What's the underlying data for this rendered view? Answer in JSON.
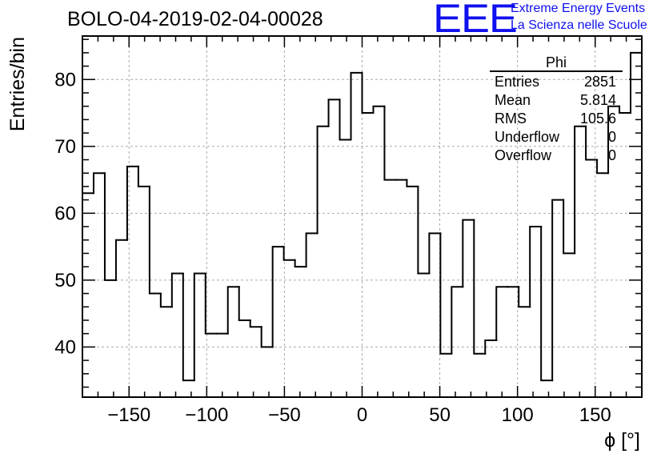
{
  "chart_data": {
    "type": "histogram",
    "title": "BOLO-04-2019-02-04-00028",
    "xlabel": "ϕ [°]",
    "ylabel": "Entries/bin",
    "xlim": [
      -180,
      180
    ],
    "ylim": [
      32.5,
      86.5
    ],
    "bin_width": 7.2,
    "x_ticks": [
      -150,
      -100,
      -50,
      0,
      50,
      100,
      150
    ],
    "x_tick_labels": [
      "−150",
      "−100",
      "−50",
      "0",
      "50",
      "100",
      "150"
    ],
    "y_ticks": [
      40,
      50,
      60,
      70,
      80
    ],
    "y_tick_labels": [
      "40",
      "50",
      "60",
      "70",
      "80"
    ],
    "grid": true,
    "values": [
      63,
      66,
      50,
      56,
      67,
      64,
      48,
      46,
      51,
      35,
      51,
      42,
      42,
      49,
      44,
      43,
      40,
      55,
      53,
      52,
      57,
      73,
      77,
      71,
      81,
      75,
      76,
      65,
      65,
      64,
      51,
      57,
      39,
      49,
      59,
      39,
      41,
      49,
      49,
      46,
      58,
      35,
      62,
      54,
      73,
      68,
      66,
      76,
      75,
      84
    ]
  },
  "stats_box": {
    "title": "Phi",
    "rows": [
      {
        "label": "Entries",
        "value": "2851"
      },
      {
        "label": "Mean",
        "value": "5.814"
      },
      {
        "label": "RMS",
        "value": "105.6"
      },
      {
        "label": "Underflow",
        "value": "0"
      },
      {
        "label": "Overflow",
        "value": "0"
      }
    ]
  },
  "logo": {
    "mark": "EEE",
    "line1": "Extreme Energy Events",
    "line2": "La Scienza nelle Scuole"
  },
  "colors": {
    "line": "#000000",
    "grid": "#aaaaaa",
    "logo": "#1010ee"
  }
}
